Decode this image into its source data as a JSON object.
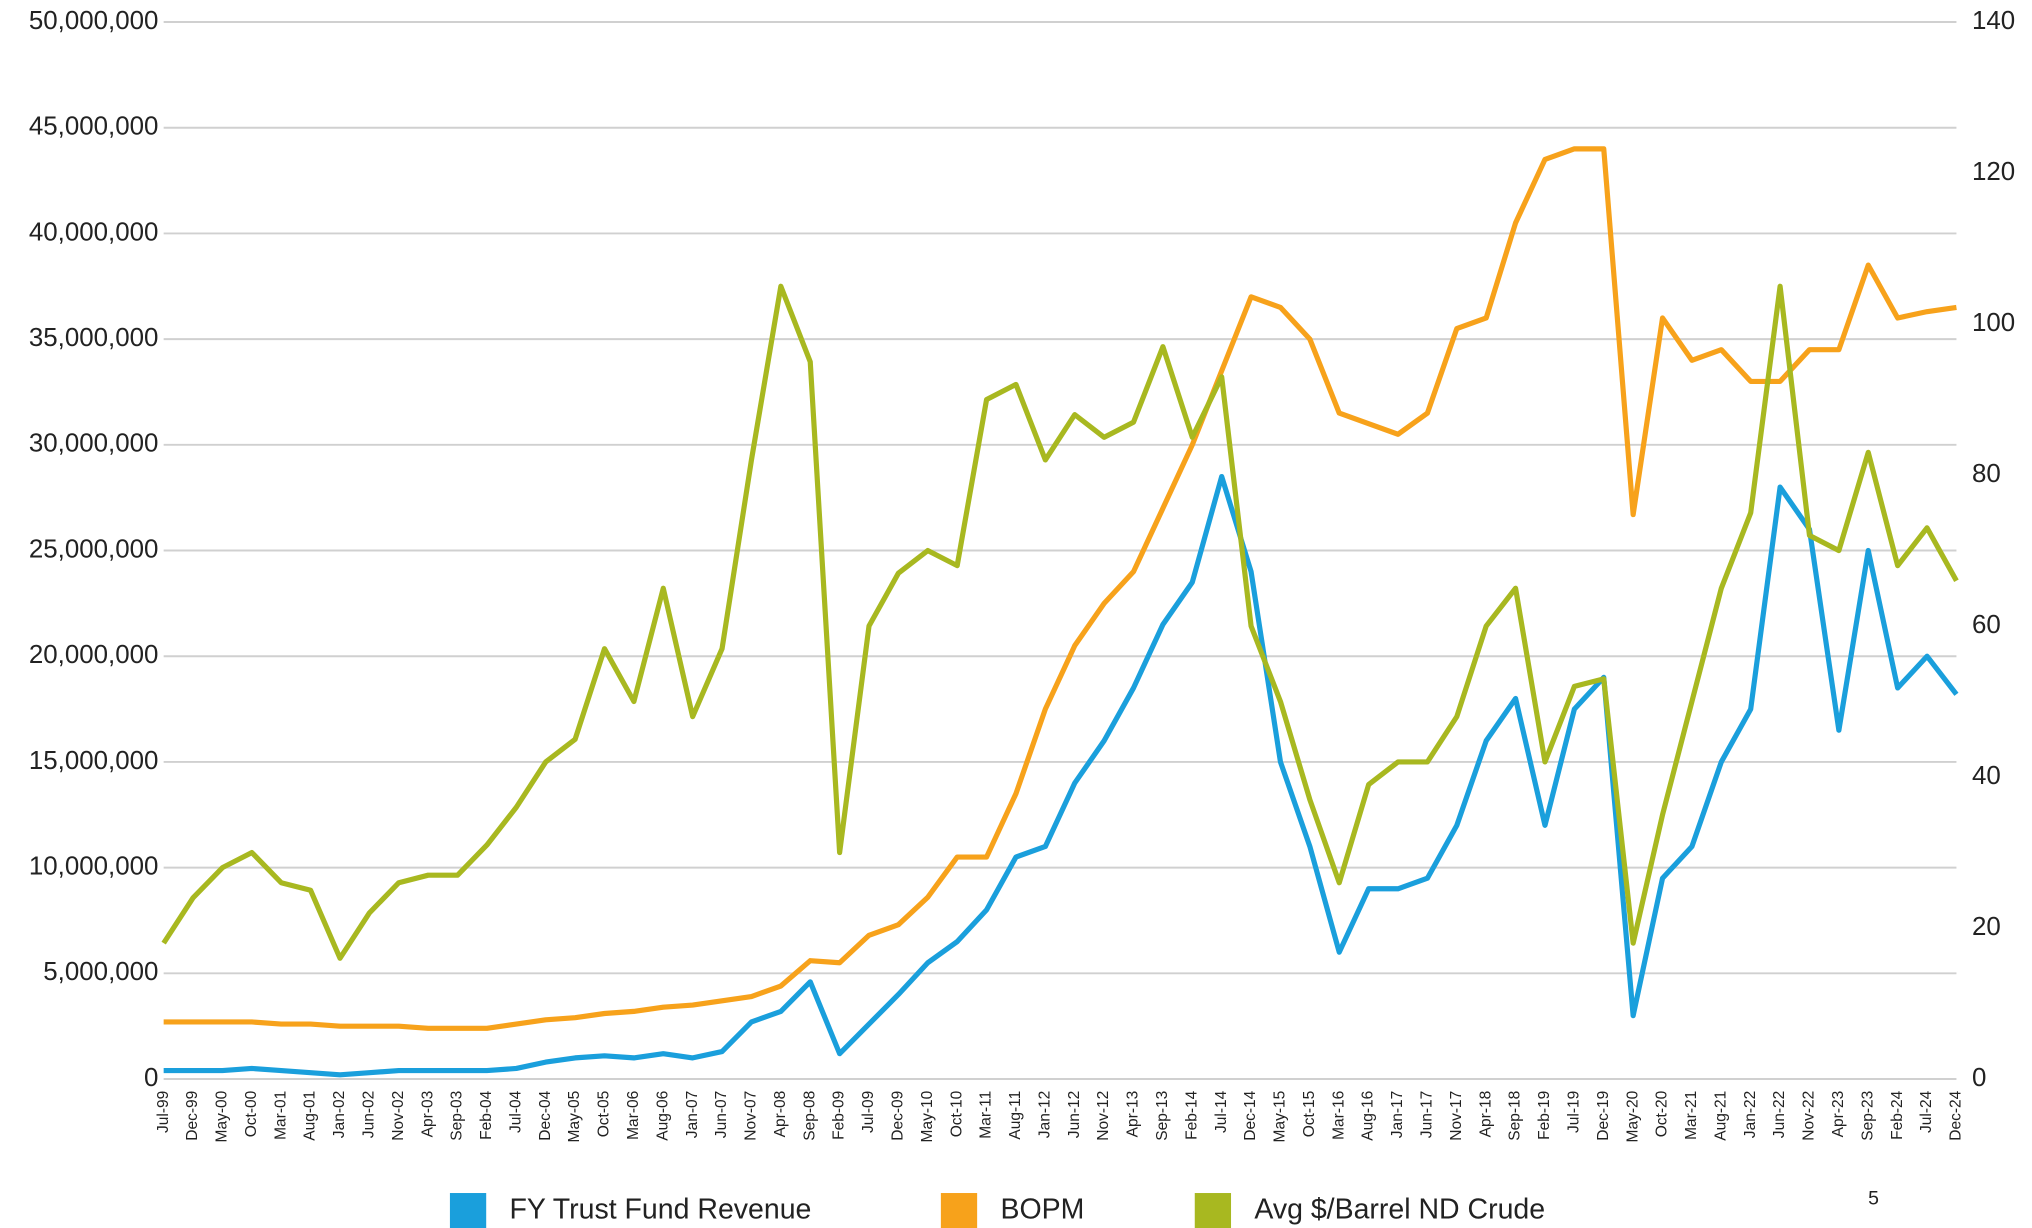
{
  "chart_data": {
    "type": "line",
    "categories": [
      "Jul-99",
      "Dec-99",
      "May-00",
      "Oct-00",
      "Mar-01",
      "Aug-01",
      "Jan-02",
      "Jun-02",
      "Nov-02",
      "Apr-03",
      "Sep-03",
      "Feb-04",
      "Jul-04",
      "Dec-04",
      "May-05",
      "Oct-05",
      "Mar-06",
      "Aug-06",
      "Jan-07",
      "Jun-07",
      "Nov-07",
      "Apr-08",
      "Sep-08",
      "Feb-09",
      "Jul-09",
      "Dec-09",
      "May-10",
      "Oct-10",
      "Mar-11",
      "Aug-11",
      "Jan-12",
      "Jun-12",
      "Nov-12",
      "Apr-13",
      "Sep-13",
      "Feb-14",
      "Jul-14",
      "Dec-14",
      "May-15",
      "Oct-15",
      "Mar-16",
      "Aug-16",
      "Jan-17",
      "Jun-17",
      "Nov-17",
      "Apr-18",
      "Sep-18",
      "Feb-19",
      "Jul-19",
      "Dec-19",
      "May-20",
      "Oct-20",
      "Mar-21",
      "Aug-21",
      "Jan-22",
      "Jun-22",
      "Nov-22",
      "Apr-23",
      "Sep-23",
      "Feb-24",
      "Jul-24",
      "Dec-24"
    ],
    "series": [
      {
        "name": "FY Trust Fund Revenue",
        "color": "#1a9fdc",
        "axis": "y",
        "values": [
          400000,
          400000,
          400000,
          500000,
          400000,
          300000,
          200000,
          300000,
          400000,
          400000,
          400000,
          400000,
          500000,
          800000,
          1000000,
          1100000,
          1000000,
          1200000,
          1000000,
          1300000,
          2700000,
          3200000,
          4600000,
          1200000,
          2600000,
          4000000,
          5500000,
          6500000,
          8000000,
          10500000,
          11000000,
          14000000,
          16000000,
          18500000,
          21500000,
          23500000,
          28500000,
          24000000,
          15000000,
          11000000,
          6000000,
          9000000,
          9000000,
          9500000,
          12000000,
          16000000,
          18000000,
          12000000,
          17500000,
          19000000,
          3000000,
          9500000,
          11000000,
          15000000,
          17500000,
          28000000,
          26000000,
          16500000,
          25000000,
          18500000,
          20000000,
          18200000
        ]
      },
      {
        "name": "BOPM",
        "color": "#f7a21b",
        "axis": "y",
        "values": [
          2700000,
          2700000,
          2700000,
          2700000,
          2600000,
          2600000,
          2500000,
          2500000,
          2500000,
          2400000,
          2400000,
          2400000,
          2600000,
          2800000,
          2900000,
          3100000,
          3200000,
          3400000,
          3500000,
          3700000,
          3900000,
          4400000,
          5600000,
          5500000,
          6800000,
          7300000,
          8600000,
          10500000,
          10500000,
          13500000,
          17500000,
          20500000,
          22500000,
          24000000,
          27000000,
          30000000,
          33500000,
          37000000,
          36500000,
          35000000,
          31500000,
          31000000,
          30500000,
          31500000,
          35500000,
          36000000,
          40500000,
          43500000,
          44000000,
          44000000,
          26700000,
          36000000,
          34000000,
          34500000,
          33000000,
          33000000,
          34500000,
          34500000,
          38500000,
          36000000,
          36300000,
          36500000
        ]
      },
      {
        "name": "Avg $/Barrel ND Crude",
        "color": "#a8b820",
        "axis": "y2",
        "values": [
          18,
          24,
          28,
          30,
          26,
          25,
          16,
          22,
          26,
          27,
          27,
          31,
          36,
          42,
          45,
          57,
          50,
          65,
          48,
          57,
          82,
          105,
          95,
          30,
          60,
          67,
          70,
          68,
          90,
          92,
          82,
          88,
          85,
          87,
          97,
          85,
          93,
          60,
          50,
          37,
          26,
          39,
          42,
          42,
          48,
          60,
          65,
          42,
          52,
          53,
          18,
          35,
          50,
          65,
          75,
          105,
          72,
          70,
          83,
          68,
          73,
          66
        ]
      }
    ],
    "ylim": [
      0,
      50000000
    ],
    "yticks": [
      0,
      {
        "value": 5000000,
        "label": "5,000,000"
      },
      {
        "value": 10000000,
        "label": "10,000,000"
      },
      {
        "value": 15000000,
        "label": "15,000,000"
      },
      {
        "value": 20000000,
        "label": "20,000,000"
      },
      {
        "value": 25000000,
        "label": "25,000,000"
      },
      {
        "value": 30000000,
        "label": "30,000,000"
      },
      {
        "value": 35000000,
        "label": "35,000,000"
      },
      {
        "value": 40000000,
        "label": "40,000,000"
      },
      {
        "value": 45000000,
        "label": "45,000,000"
      },
      {
        "value": 50000000,
        "label": "50,000,000"
      }
    ],
    "y2lim": [
      0,
      140
    ],
    "y2ticks": [
      0,
      20,
      40,
      60,
      80,
      100,
      120,
      140
    ],
    "grid": true,
    "legend": "bottom",
    "page_number": "5"
  }
}
